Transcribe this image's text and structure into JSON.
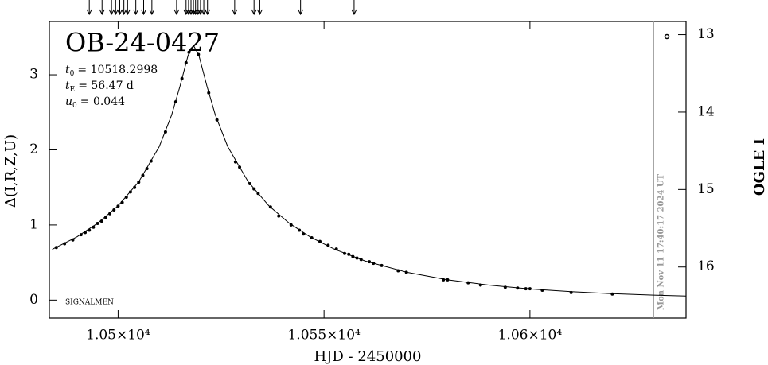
{
  "chart_data": {
    "type": "line",
    "title": "OB-24-0427",
    "params": [
      {
        "symbol": "t",
        "sub": "0",
        "text": "= 10518.2998"
      },
      {
        "symbol": "t",
        "sub": "E",
        "text": "= 56.47 d"
      },
      {
        "symbol": "u",
        "sub": "0",
        "text": "= 0.044"
      }
    ],
    "source": "SIGNALMEN",
    "timestamp": "Mon Nov 11 17:40:17 2024 UT",
    "x_label": "HJD - 2450000",
    "y_label": "Δ(I,R,Z,U)",
    "y2_label": "OGLE I",
    "xlim": [
      10483.3,
      10637.9
    ],
    "xticks": [
      {
        "value": 10500,
        "label": "1.05×10⁴"
      },
      {
        "value": 10550,
        "label": "1.055×10⁴"
      },
      {
        "value": 10600,
        "label": "1.06×10⁴"
      }
    ],
    "ylim": [
      -0.24,
      3.71
    ],
    "yticks": [
      0,
      1,
      2,
      3
    ],
    "y2lim": [
      16.66,
      12.83
    ],
    "y2ticks": [
      13,
      14,
      15,
      16
    ],
    "now_x": 10630.0,
    "arrows_x": [
      10493.0,
      10496.1,
      10498.4,
      10499.4,
      10500.4,
      10501.4,
      10502.3,
      10504.3,
      10506.2,
      10508.2,
      10514.2,
      10516.5,
      10517.1,
      10517.7,
      10518.3,
      10518.8,
      10519.4,
      10520.0,
      10520.8,
      10521.7,
      10528.3,
      10533.0,
      10534.4,
      10544.3,
      10557.3
    ],
    "model": {
      "x": [
        10484,
        10490,
        10495,
        10500,
        10505,
        10510,
        10513,
        10515,
        10517,
        10518.3,
        10519.6,
        10521.6,
        10523.6,
        10526.6,
        10531.6,
        10536.6,
        10541.6,
        10546.6,
        10552.6,
        10560,
        10570,
        10580,
        10590,
        10600,
        10610,
        10620,
        10630,
        10638
      ],
      "y": [
        0.675,
        0.842,
        1.022,
        1.256,
        1.574,
        2.045,
        2.465,
        2.843,
        3.26,
        3.392,
        3.26,
        2.843,
        2.465,
        2.045,
        1.574,
        1.256,
        1.022,
        0.842,
        0.675,
        0.52,
        0.372,
        0.27,
        0.199,
        0.148,
        0.112,
        0.085,
        0.066,
        0.054
      ]
    },
    "points": {
      "x": [
        10485,
        10487,
        10489,
        10491,
        10492,
        10493,
        10494,
        10495,
        10496,
        10497,
        10498,
        10499,
        10500,
        10501,
        10502,
        10503,
        10504,
        10505,
        10506,
        10507,
        10508,
        10511.5,
        10514,
        10515.5,
        10516.5,
        10517.2,
        10519.5,
        10522,
        10524,
        10528.5,
        10529.5,
        10532,
        10533,
        10534,
        10537,
        10539,
        10542,
        10544,
        10545,
        10547,
        10549,
        10551,
        10553,
        10555,
        10556,
        10557,
        10558,
        10559,
        10561,
        10562,
        10564,
        10568,
        10570,
        10579,
        10580,
        10585,
        10588,
        10594,
        10597,
        10599,
        10600,
        10603,
        10610,
        10620
      ],
      "y": [
        0.7,
        0.75,
        0.8,
        0.87,
        0.9,
        0.93,
        0.97,
        1.02,
        1.05,
        1.1,
        1.15,
        1.2,
        1.25,
        1.3,
        1.37,
        1.44,
        1.5,
        1.57,
        1.66,
        1.75,
        1.85,
        2.24,
        2.64,
        2.95,
        3.16,
        3.3,
        3.27,
        2.76,
        2.4,
        1.84,
        1.77,
        1.55,
        1.48,
        1.42,
        1.24,
        1.12,
        1.0,
        0.93,
        0.88,
        0.83,
        0.78,
        0.73,
        0.68,
        0.62,
        0.61,
        0.58,
        0.56,
        0.54,
        0.51,
        0.49,
        0.46,
        0.39,
        0.37,
        0.27,
        0.27,
        0.23,
        0.2,
        0.17,
        0.16,
        0.15,
        0.15,
        0.13,
        0.1,
        0.08
      ]
    }
  }
}
